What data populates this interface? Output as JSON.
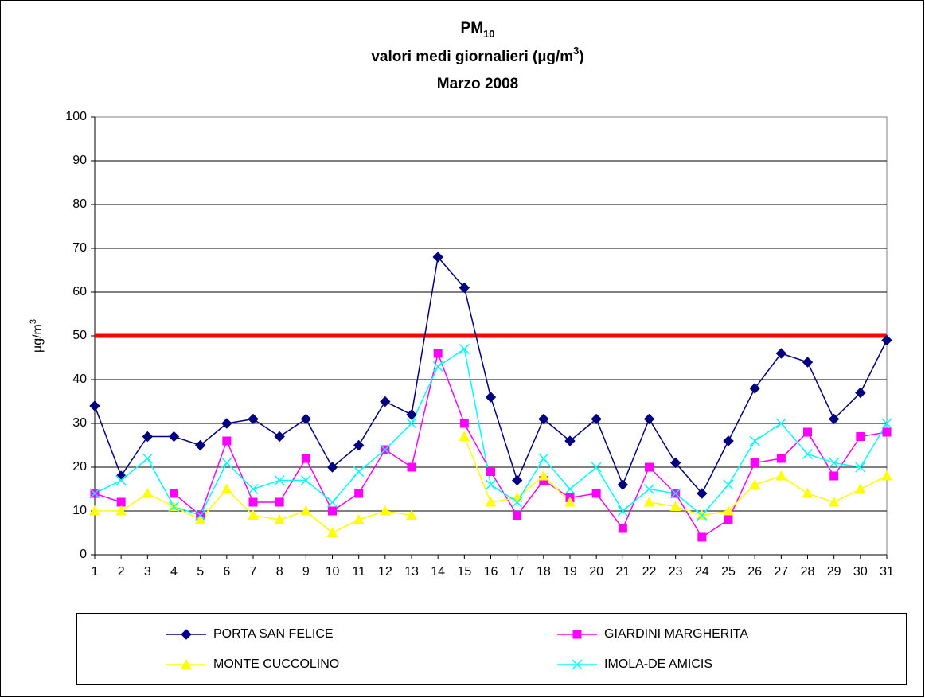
{
  "chart_data": {
    "type": "line",
    "title_lines": [
      [
        "PM",
        "10"
      ],
      [
        "valori medi giornalieri (µg/m",
        "3",
        ")"
      ],
      [
        "Marzo 2008"
      ]
    ],
    "y_label": [
      "µg/m",
      "3"
    ],
    "categories": [
      "1",
      "2",
      "3",
      "4",
      "5",
      "6",
      "7",
      "8",
      "9",
      "10",
      "11",
      "12",
      "13",
      "14",
      "15",
      "16",
      "17",
      "18",
      "19",
      "20",
      "21",
      "22",
      "23",
      "24",
      "25",
      "26",
      "27",
      "28",
      "29",
      "30",
      "31"
    ],
    "series": [
      {
        "name": "PORTA SAN FELICE",
        "color": "#000080",
        "marker": "diamond",
        "values": [
          34,
          18,
          27,
          27,
          25,
          30,
          31,
          27,
          31,
          20,
          25,
          35,
          32,
          68,
          61,
          36,
          17,
          31,
          26,
          31,
          16,
          31,
          21,
          14,
          26,
          38,
          46,
          44,
          31,
          37,
          49
        ]
      },
      {
        "name": "GIARDINI MARGHERITA",
        "color": "#ff00ff",
        "marker": "square",
        "values": [
          14,
          12,
          null,
          14,
          9,
          26,
          12,
          12,
          22,
          10,
          14,
          24,
          20,
          46,
          30,
          19,
          9,
          17,
          13,
          14,
          6,
          20,
          14,
          4,
          8,
          21,
          22,
          28,
          18,
          27,
          28
        ]
      },
      {
        "name": "MONTE CUCCOLINO",
        "color": "#ffff00",
        "marker": "triangle",
        "values": [
          10,
          10,
          14,
          11,
          8,
          15,
          9,
          8,
          10,
          5,
          8,
          10,
          9,
          null,
          27,
          12,
          13,
          18,
          12,
          null,
          null,
          12,
          11,
          9,
          10,
          16,
          18,
          14,
          12,
          15,
          18
        ]
      },
      {
        "name": "IMOLA-DE AMICIS",
        "color": "#00ffff",
        "marker": "x",
        "values": [
          14,
          17,
          22,
          11,
          9,
          21,
          15,
          17,
          17,
          12,
          19,
          24,
          30,
          43,
          47,
          16,
          12,
          22,
          15,
          20,
          10,
          15,
          14,
          9,
          16,
          26,
          30,
          23,
          21,
          20,
          30
        ]
      }
    ],
    "reference_line": {
      "value": 50,
      "color": "#ff0000"
    },
    "ylim": [
      0,
      100
    ],
    "yticks": [
      0,
      10,
      20,
      30,
      40,
      50,
      60,
      70,
      80,
      90,
      100
    ],
    "grid": true
  }
}
